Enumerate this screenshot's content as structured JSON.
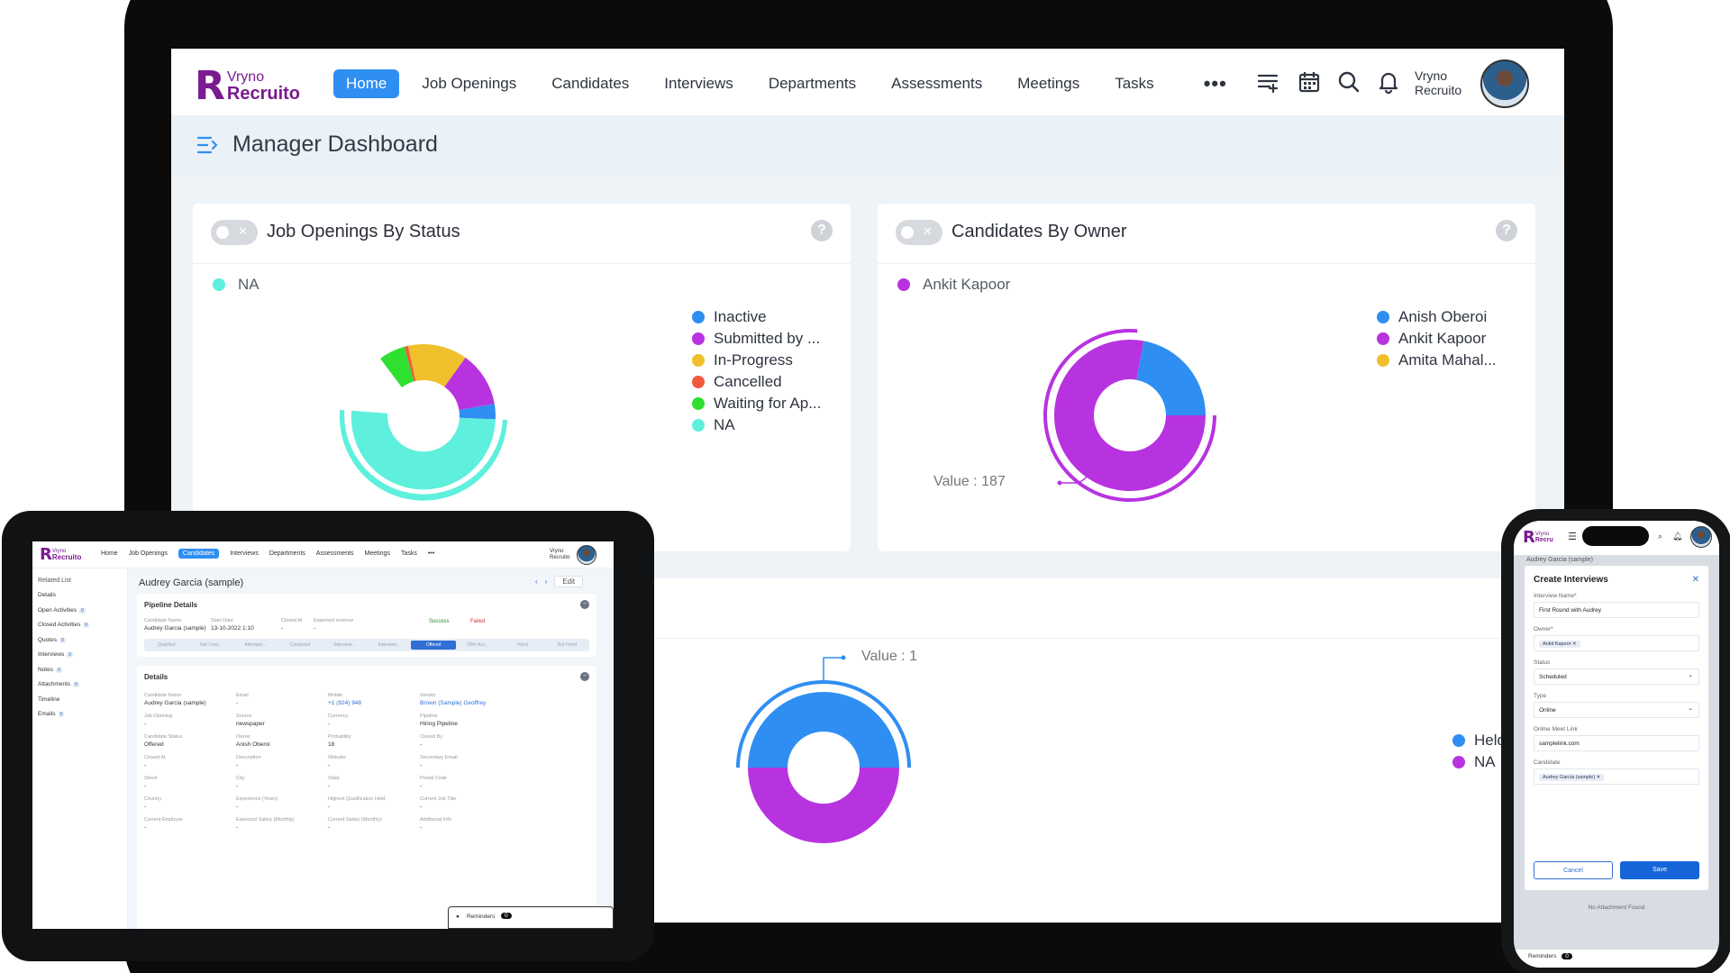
{
  "laptop": {
    "brand": {
      "mark": "R",
      "line1": "Vryno",
      "line2": "Recruito"
    },
    "nav": [
      "Home",
      "Job Openings",
      "Candidates",
      "Interviews",
      "Departments",
      "Assessments",
      "Meetings",
      "Tasks"
    ],
    "nav_active": "Home",
    "more_label": "•••",
    "icons": [
      "sort-list-icon",
      "calendar-icon",
      "search-icon",
      "bell-icon"
    ],
    "user": {
      "line1": "Vryno",
      "line2": "Recruito"
    },
    "page_title": "Manager Dashboard",
    "cards": [
      {
        "title": "Job Openings By Status",
        "help": "?",
        "selected": {
          "label": "NA",
          "color": "#5ef0dc"
        },
        "legend": [
          {
            "label": "Inactive",
            "color": "#2f8ef2"
          },
          {
            "label": "Submitted by ...",
            "color": "#b833e0"
          },
          {
            "label": "In-Progress",
            "color": "#f0c02c"
          },
          {
            "label": "Cancelled",
            "color": "#ef5a3c"
          },
          {
            "label": "Waiting for Ap...",
            "color": "#2fe030"
          },
          {
            "label": "NA",
            "color": "#5ef0dc"
          }
        ]
      },
      {
        "title": "Candidates By Owner",
        "help": "?",
        "selected": {
          "label": "Ankit Kapoor",
          "color": "#b833e0"
        },
        "legend": [
          {
            "label": "Anish Oberoi",
            "color": "#2f8ef2"
          },
          {
            "label": "Ankit Kapoor",
            "color": "#b833e0"
          },
          {
            "label": "Amita Mahal...",
            "color": "#f0c02c"
          }
        ],
        "value_label": "Value : 187"
      },
      {
        "legend": [
          {
            "label": "Held",
            "color": "#2f8ef2"
          },
          {
            "label": "NA",
            "color": "#b833e0"
          }
        ],
        "value_label": "Value : 1"
      }
    ]
  },
  "tablet": {
    "brand": {
      "mark": "R",
      "line1": "Vryno",
      "line2": "Recruito"
    },
    "nav": [
      "Home",
      "Job Openings",
      "Candidates",
      "Interviews",
      "Departments",
      "Assessments",
      "Meetings",
      "Tasks"
    ],
    "nav_active": "Candidates",
    "more_label": "•••",
    "user": {
      "line1": "Vryno",
      "line2": "Recruito"
    },
    "sidebar": {
      "heading": "Related List",
      "items": [
        {
          "label": "Details",
          "count": null
        },
        {
          "label": "Open Activities",
          "count": "0"
        },
        {
          "label": "Closed Activities",
          "count": "0"
        },
        {
          "label": "Quotes",
          "count": "0"
        },
        {
          "label": "Interviews",
          "count": "0"
        },
        {
          "label": "Notes",
          "count": "0"
        },
        {
          "label": "Attachments",
          "count": "0"
        },
        {
          "label": "Timeline",
          "count": null
        },
        {
          "label": "Emails",
          "count": "0"
        }
      ]
    },
    "record_title": "Audrey Garcia (sample)",
    "edit_label": "Edit",
    "pipeline": {
      "heading": "Pipeline Details",
      "fields": [
        {
          "label": "Candidate Name",
          "value": "Audrey Garcia (sample)"
        },
        {
          "label": "Start Date",
          "value": "13-10-2022 1:10"
        },
        {
          "label": "Closed At",
          "value": "-"
        },
        {
          "label": "Expected revenue",
          "value": "-"
        }
      ],
      "success_label": "Success",
      "failed_label": "Failed",
      "stages": [
        "Qualified",
        "Not Cont...",
        "Attempte...",
        "Contacted",
        "Interview...",
        "Interview...",
        "Offered",
        "Offer Acc...",
        "Hired",
        "Not Hired"
      ],
      "active_stage": "Offered"
    },
    "details": {
      "heading": "Details",
      "rows": [
        [
          {
            "label": "Candidate Name",
            "value": "Audrey Garcia (sample)"
          },
          {
            "label": "Email",
            "value": "-"
          },
          {
            "label": "Mobile",
            "value": "+1 (924) 948"
          },
          {
            "label": "Vendor",
            "value": "Brown (Sample) Geoffrey"
          }
        ],
        [
          {
            "label": "Job Opening",
            "value": "-"
          },
          {
            "label": "Source",
            "value": "newspaper"
          },
          {
            "label": "Currency",
            "value": "-"
          },
          {
            "label": "Pipeline",
            "value": "Hiring Pipeline"
          }
        ],
        [
          {
            "label": "Candidate Status",
            "value": "Offered"
          },
          {
            "label": "Owner",
            "value": "Anish Oberoi"
          },
          {
            "label": "Probability",
            "value": "18"
          },
          {
            "label": "Closed By",
            "value": "-"
          }
        ],
        [
          {
            "label": "Closed At",
            "value": "-"
          },
          {
            "label": "Description",
            "value": "-"
          },
          {
            "label": "Website",
            "value": "-"
          },
          {
            "label": "Secondary Email",
            "value": "-"
          }
        ],
        [
          {
            "label": "Street",
            "value": "-"
          },
          {
            "label": "City",
            "value": "-"
          },
          {
            "label": "State",
            "value": "-"
          },
          {
            "label": "Postal Code",
            "value": "-"
          }
        ],
        [
          {
            "label": "Country",
            "value": "-"
          },
          {
            "label": "Experience (Years)",
            "value": "-"
          },
          {
            "label": "Highest Qualification Held",
            "value": "-"
          },
          {
            "label": "Current Job Title",
            "value": "-"
          }
        ],
        [
          {
            "label": "Current Employer",
            "value": "-"
          },
          {
            "label": "Expected Salary (Monthly)",
            "value": "-"
          },
          {
            "label": "Current Salary (Monthly)",
            "value": "-"
          },
          {
            "label": "Additional Info",
            "value": "-"
          }
        ]
      ]
    },
    "reminders": {
      "label": "Reminders",
      "count": "0"
    }
  },
  "phone": {
    "brand": {
      "mark": "R",
      "line1": "Vryno",
      "line2": "Recru"
    },
    "modal": {
      "title": "Create Interviews",
      "fields": [
        {
          "label": "Interview Name*",
          "value": "First Round with Audrey",
          "type": "text"
        },
        {
          "label": "Owner*",
          "value": "Ankit Kapoor",
          "type": "chip"
        },
        {
          "label": "Status",
          "value": "Scheduled",
          "type": "select"
        },
        {
          "label": "Type",
          "value": "Online",
          "type": "select"
        },
        {
          "label": "Online Meet Link",
          "value": "samplelink.com",
          "type": "text"
        },
        {
          "label": "Candidate",
          "value": "Audrey Garcia (sample)",
          "type": "chip"
        }
      ],
      "cancel_label": "Cancel",
      "save_label": "Save"
    },
    "behind_title": "Audrey Garcia (sample)",
    "no_attachment": "No Attachment Found",
    "reminders": {
      "label": "Reminders",
      "count": "0"
    }
  }
}
